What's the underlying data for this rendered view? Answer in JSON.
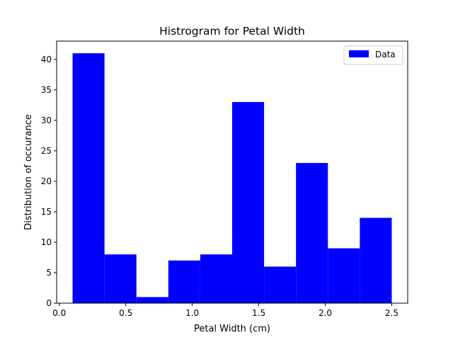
{
  "chart_data": {
    "type": "bar",
    "title": "Histrogram for Petal Width",
    "xlabel": "Petal Width (cm)",
    "ylabel": "Distribution of occurance",
    "bin_edges": [
      0.1,
      0.34,
      0.58,
      0.82,
      1.06,
      1.3,
      1.54,
      1.78,
      2.02,
      2.26,
      2.5
    ],
    "series": [
      {
        "name": "Data",
        "values": [
          41,
          8,
          1,
          7,
          8,
          33,
          6,
          23,
          9,
          14
        ]
      }
    ],
    "xlim": [
      -0.02,
      2.62
    ],
    "ylim": [
      0,
      43
    ],
    "xticks": [
      0.0,
      0.5,
      1.0,
      1.5,
      2.0,
      2.5
    ],
    "xtick_labels": [
      "0.0",
      "0.5",
      "1.0",
      "1.5",
      "2.0",
      "2.5"
    ],
    "yticks": [
      0,
      5,
      10,
      15,
      20,
      25,
      30,
      35,
      40
    ],
    "ytick_labels": [
      "0",
      "5",
      "10",
      "15",
      "20",
      "25",
      "30",
      "35",
      "40"
    ],
    "bar_color": "#0000ff",
    "grid": false,
    "legend_position": "top-right"
  }
}
